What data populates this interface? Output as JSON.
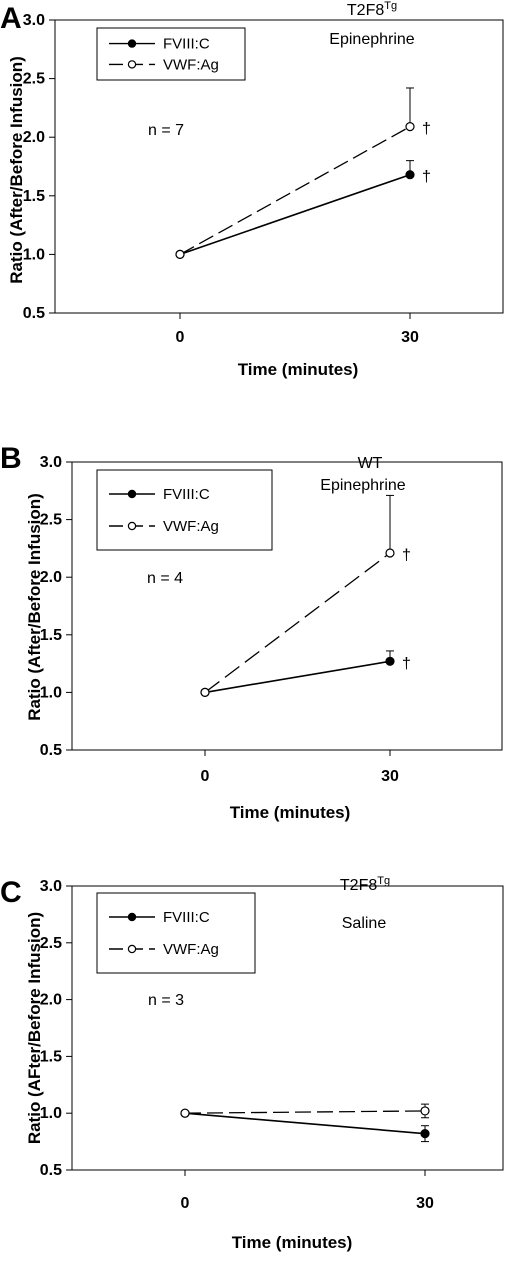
{
  "chart_data": [
    {
      "panel": "A",
      "type": "line",
      "title_main": "T2F8",
      "title_sup": "Tg",
      "subtitle": "Epinephrine",
      "annotation": "n = 7",
      "xlabel": "Time (minutes)",
      "ylabel": "Ratio (After/Before Infusion)",
      "xticks": [
        "0",
        "30"
      ],
      "yticks": [
        "0.5",
        "1.0",
        "1.5",
        "2.0",
        "2.5",
        "3.0"
      ],
      "ylim": [
        0.5,
        3.0
      ],
      "legend_position": "top-left",
      "series": [
        {
          "name": "FVIII:C",
          "marker": "filled",
          "line": "solid",
          "x": [
            0,
            30
          ],
          "y": [
            1.0,
            1.68
          ],
          "error_up": [
            0,
            0.12
          ],
          "error_down": [
            0,
            0
          ],
          "sig": [
            "",
            "†"
          ]
        },
        {
          "name": "VWF:Ag",
          "marker": "open",
          "line": "dashed",
          "x": [
            0,
            30
          ],
          "y": [
            1.0,
            2.09
          ],
          "error_up": [
            0,
            0.33
          ],
          "error_down": [
            0,
            0
          ],
          "sig": [
            "",
            "†"
          ]
        }
      ]
    },
    {
      "panel": "B",
      "type": "line",
      "title_main": "WT",
      "title_sup": "",
      "subtitle": "Epinephrine",
      "annotation": "n = 4",
      "xlabel": "Time (minutes)",
      "ylabel": "Ratio (After/Before Infusion)",
      "xticks": [
        "0",
        "30"
      ],
      "yticks": [
        "0.5",
        "1.0",
        "1.5",
        "2.0",
        "2.5",
        "3.0"
      ],
      "ylim": [
        0.5,
        3.0
      ],
      "legend_position": "top-left",
      "series": [
        {
          "name": "FVIII:C",
          "marker": "filled",
          "line": "solid",
          "x": [
            0,
            30
          ],
          "y": [
            1.0,
            1.27
          ],
          "error_up": [
            0,
            0.09
          ],
          "error_down": [
            0,
            0
          ],
          "sig": [
            "",
            "†"
          ]
        },
        {
          "name": "VWF:Ag",
          "marker": "open",
          "line": "dashed",
          "x": [
            0,
            30
          ],
          "y": [
            1.0,
            2.21
          ],
          "error_up": [
            0,
            0.5
          ],
          "error_down": [
            0,
            0
          ],
          "sig": [
            "",
            "†"
          ]
        }
      ]
    },
    {
      "panel": "C",
      "type": "line",
      "title_main": "T2F8",
      "title_sup": "Tg",
      "subtitle": "Saline",
      "annotation": "n = 3",
      "xlabel": "Time (minutes)",
      "ylabel": "Ratio (AFter/Before Infusion)",
      "xticks": [
        "0",
        "30"
      ],
      "yticks": [
        "0.5",
        "1.0",
        "1.5",
        "2.0",
        "2.5",
        "3.0"
      ],
      "ylim": [
        0.5,
        3.0
      ],
      "legend_position": "top-left",
      "series": [
        {
          "name": "FVIII:C",
          "marker": "filled",
          "line": "solid",
          "x": [
            0,
            30
          ],
          "y": [
            1.0,
            0.82
          ],
          "error_up": [
            0,
            0.07
          ],
          "error_down": [
            0,
            0.07
          ],
          "sig": [
            "",
            ""
          ]
        },
        {
          "name": "VWF:Ag",
          "marker": "open",
          "line": "dashed",
          "x": [
            0,
            30
          ],
          "y": [
            1.0,
            1.02
          ],
          "error_up": [
            0,
            0.06
          ],
          "error_down": [
            0,
            0.06
          ],
          "sig": [
            "",
            ""
          ]
        }
      ]
    }
  ]
}
